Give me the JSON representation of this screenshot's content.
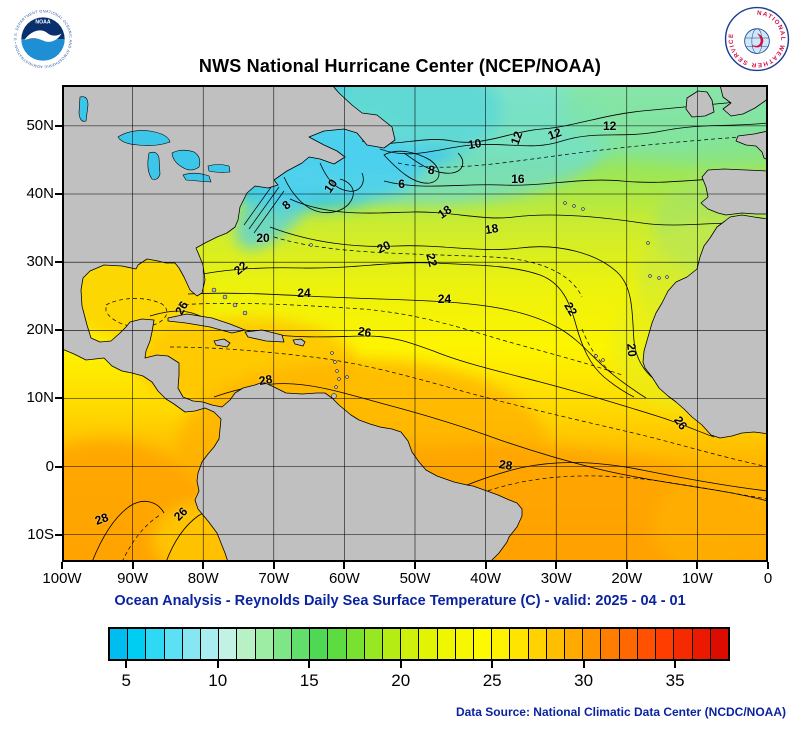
{
  "colors": {
    "accent": "#0a23a0",
    "land": "#c0c0c0",
    "lake": "#3cc6ea"
  },
  "header": {
    "title": "NWS National Hurricane Center (NCEP/NOAA)",
    "noaa_ring": "NATIONAL OCEANIC AND ATMOSPHERIC ADMINISTRATION • U.S. DEPARTMENT OF COMMERCE",
    "noaa_label": "NOAA",
    "nws_ring": "NATIONAL WEATHER SERVICE"
  },
  "map": {
    "lat_ticks": [
      {
        "label": "50N",
        "value": 50
      },
      {
        "label": "40N",
        "value": 40
      },
      {
        "label": "30N",
        "value": 30
      },
      {
        "label": "20N",
        "value": 20
      },
      {
        "label": "10N",
        "value": 10
      },
      {
        "label": "0",
        "value": 0
      },
      {
        "label": "10S",
        "value": -10
      }
    ],
    "lon_ticks": [
      {
        "label": "100W",
        "value": -100
      },
      {
        "label": "90W",
        "value": -90
      },
      {
        "label": "80W",
        "value": -80
      },
      {
        "label": "70W",
        "value": -70
      },
      {
        "label": "60W",
        "value": -60
      },
      {
        "label": "50W",
        "value": -50
      },
      {
        "label": "40W",
        "value": -40
      },
      {
        "label": "30W",
        "value": -30
      },
      {
        "label": "20W",
        "value": -20
      },
      {
        "label": "10W",
        "value": -10
      },
      {
        "label": "0",
        "value": 0
      }
    ],
    "contour_labels": [
      {
        "text": "20",
        "lon": -71.2,
        "lat": 33.2,
        "rot": 0
      },
      {
        "text": "8",
        "lon": -67.4,
        "lat": 38.1,
        "rot": -40
      },
      {
        "text": "10",
        "lon": -61.6,
        "lat": 40.9,
        "rot": -55
      },
      {
        "text": "6",
        "lon": -51.1,
        "lat": 41.2,
        "rot": 0
      },
      {
        "text": "8",
        "lon": -46.9,
        "lat": 43.2,
        "rot": 10
      },
      {
        "text": "10",
        "lon": -41.2,
        "lat": 47.0,
        "rot": -10
      },
      {
        "text": "12",
        "lon": -35.3,
        "lat": 47.9,
        "rot": -70
      },
      {
        "text": "12",
        "lon": -29.9,
        "lat": 48.5,
        "rot": -20
      },
      {
        "text": "12",
        "lon": -22.1,
        "lat": 49.7,
        "rot": 0
      },
      {
        "text": "16",
        "lon": -35.1,
        "lat": 41.9,
        "rot": 0
      },
      {
        "text": "18",
        "lon": -45.5,
        "lat": 37.1,
        "rot": -35
      },
      {
        "text": "18",
        "lon": -38.8,
        "lat": 34.6,
        "rot": -10
      },
      {
        "text": "20",
        "lon": -54.1,
        "lat": 31.9,
        "rot": -25
      },
      {
        "text": "22",
        "lon": -47.3,
        "lat": 30.0,
        "rot": 75
      },
      {
        "text": "22",
        "lon": -74.4,
        "lat": 28.8,
        "rot": -40
      },
      {
        "text": "24",
        "lon": -65.4,
        "lat": 25.2,
        "rot": 0
      },
      {
        "text": "24",
        "lon": -45.5,
        "lat": 24.3,
        "rot": 0
      },
      {
        "text": "26",
        "lon": -82.7,
        "lat": 23.0,
        "rot": -60
      },
      {
        "text": "26",
        "lon": -56.8,
        "lat": 19.4,
        "rot": 10
      },
      {
        "text": "22",
        "lon": -27.6,
        "lat": 22.8,
        "rot": 60
      },
      {
        "text": "20",
        "lon": -19.0,
        "lat": 16.8,
        "rot": 85
      },
      {
        "text": "28",
        "lon": -70.8,
        "lat": 12.4,
        "rot": -10
      },
      {
        "text": "26",
        "lon": -12.0,
        "lat": 6.1,
        "rot": 55
      },
      {
        "text": "28",
        "lon": -36.8,
        "lat": -0.1,
        "rot": 8
      },
      {
        "text": "28",
        "lon": -94.1,
        "lat": -8.0,
        "rot": -20
      },
      {
        "text": "26",
        "lon": -82.9,
        "lat": -7.3,
        "rot": -45
      }
    ]
  },
  "caption": "Ocean Analysis - Reynolds Daily Sea Surface Temperature (C) - valid: 2025 - 04 - 01",
  "colorbar": {
    "min": 4,
    "max": 38,
    "ticks": [
      5,
      10,
      15,
      20,
      25,
      30,
      35
    ],
    "colors": [
      "#00bdf0",
      "#00cdf2",
      "#2fd8f3",
      "#5ce0f4",
      "#86e7f3",
      "#aaedf0",
      "#c2f2e4",
      "#b8f2c4",
      "#9deea4",
      "#7fe687",
      "#62de6b",
      "#4fd854",
      "#5cdc41",
      "#79e231",
      "#97e722",
      "#b4ec14",
      "#cff00a",
      "#e2f403",
      "#eef600",
      "#f7f800",
      "#fdf900",
      "#fff200",
      "#ffe400",
      "#ffd200",
      "#ffbf00",
      "#ffaa00",
      "#ff9300",
      "#ff7d00",
      "#ff6700",
      "#ff5100",
      "#ff3d00",
      "#f62a00",
      "#ea1900",
      "#dc0d00"
    ]
  },
  "footer": {
    "source": "Data Source: National Climatic Data Center (NCDC/NOAA)"
  },
  "chart_data": {
    "type": "contour_map",
    "region": "North Atlantic",
    "title": "NWS National Hurricane Center (NCEP/NOAA)",
    "subtitle": "Ocean Analysis - Reynolds Daily Sea Surface Temperature (C) - valid: 2025 - 04 - 01",
    "variable": "sea_surface_temperature",
    "units": "C",
    "valid_date": "2025 - 04 - 01",
    "lon_labels": [
      "100W",
      "90W",
      "80W",
      "70W",
      "60W",
      "50W",
      "40W",
      "30W",
      "20W",
      "10W",
      "0"
    ],
    "lat_labels": [
      "50N",
      "40N",
      "30N",
      "20N",
      "10N",
      "0",
      "10S"
    ],
    "contour_interval_c": 2,
    "labeled_isotherms_c": [
      6,
      8,
      10,
      12,
      16,
      18,
      20,
      22,
      24,
      26,
      28
    ],
    "colorbar_ticks_c": [
      5,
      10,
      15,
      20,
      25,
      30,
      35
    ],
    "data_source": "National Climatic Data Center (NCDC/NOAA)"
  }
}
